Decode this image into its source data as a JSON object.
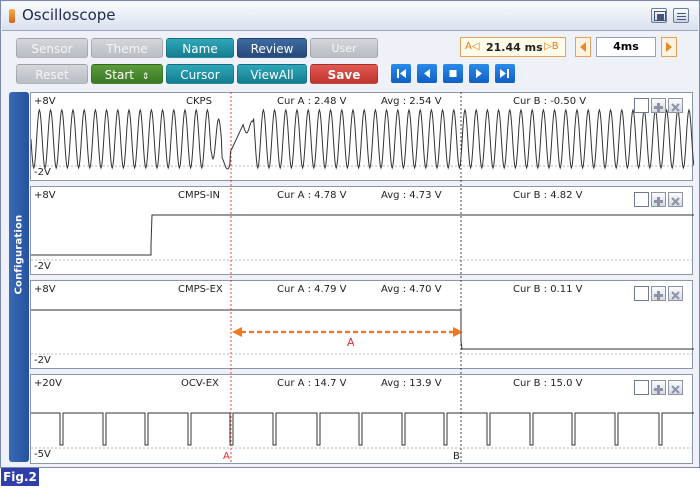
{
  "window": {
    "title": "Oscilloscope"
  },
  "toolbar": {
    "sensor": "Sensor",
    "theme": "Theme",
    "name": "Name",
    "review": "Review",
    "user_setting": "User Setting",
    "reset": "Reset",
    "start": "Start",
    "cursor": "Cursor",
    "view_all": "ViewAll",
    "save": "Save"
  },
  "cursor_readout": {
    "a_label": "A◁",
    "value": "21.44 ms",
    "b_label": "▷B"
  },
  "time_base": "4ms",
  "sidebar": {
    "label": "Configuration"
  },
  "panels": [
    {
      "name": "CKPS",
      "ymax": "+8V",
      "ymin": "-2V",
      "cur_a": "Cur A : 2.48 V",
      "avg": "Avg : 2.54 V",
      "cur_b": "Cur B : -0.50 V"
    },
    {
      "name": "CMPS-IN",
      "ymax": "+8V",
      "ymin": "-2V",
      "cur_a": "Cur A : 4.78 V",
      "avg": "Avg : 4.73 V",
      "cur_b": "Cur B : 4.82 V"
    },
    {
      "name": "CMPS-EX",
      "ymax": "+8V",
      "ymin": "-2V",
      "cur_a": "Cur A : 4.79 V",
      "avg": "Avg : 4.70 V",
      "cur_b": "Cur B : 0.11 V"
    },
    {
      "name": "OCV-EX",
      "ymax": "+20V",
      "ymin": "-5V",
      "cur_a": "Cur A : 14.7 V",
      "avg": "Avg : 13.9 V",
      "cur_b": "Cur B : 15.0 V"
    }
  ],
  "annotation": {
    "interval_label": "A"
  },
  "cursor_markers": {
    "a": "A",
    "b": "B"
  },
  "figure_label": "Fig.2",
  "colors": {
    "accent_orange": "#f07820",
    "cursor_red": "#e03030",
    "sidebar_blue": "#2f5fae"
  }
}
